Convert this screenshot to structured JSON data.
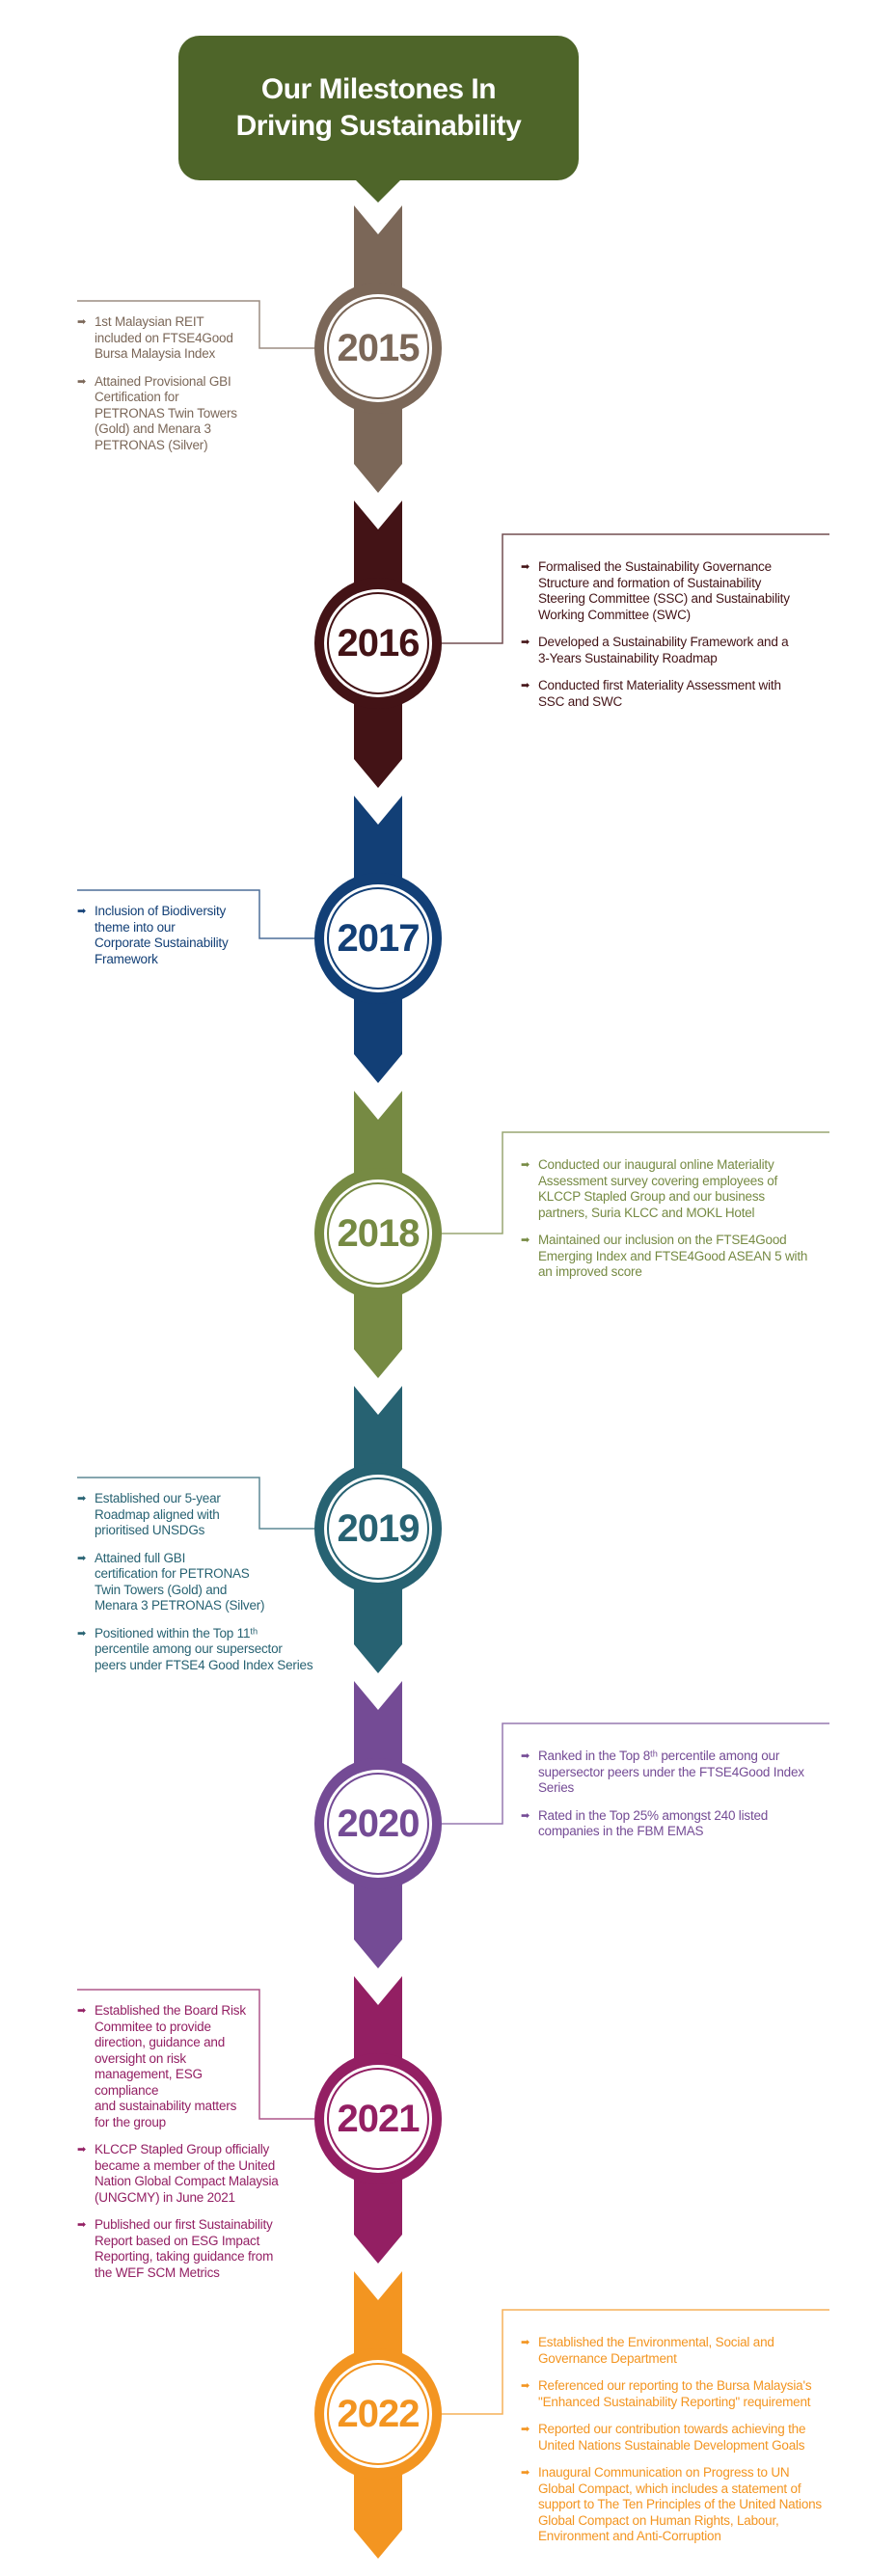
{
  "title": "Our Milestones In\nDriving Sustainability",
  "title_color": "#4e6529",
  "bullet_icon": "arrow-right-icon",
  "milestones": [
    {
      "year": "2015",
      "color": "#7b6758",
      "side": "left",
      "items": [
        "1st Malaysian REIT\nincluded on FTSE4Good\nBursa Malaysia Index",
        "Attained Provisional GBI\nCertification for\nPETRONAS Twin Towers\n(Gold) and Menara 3\nPETRONAS (Silver)"
      ]
    },
    {
      "year": "2016",
      "color": "#431316",
      "side": "right",
      "items": [
        "Formalised the Sustainability Governance\nStructure and formation of Sustainability\nSteering Committee (SSC) and Sustainability\nWorking Committee (SWC)",
        "Developed a Sustainability Framework and a\n3-Years Sustainability Roadmap",
        "Conducted first Materiality Assessment with\nSSC and SWC"
      ]
    },
    {
      "year": "2017",
      "color": "#123f76",
      "side": "left",
      "items": [
        "Inclusion of Biodiversity\ntheme into our\nCorporate Sustainability\nFramework"
      ]
    },
    {
      "year": "2018",
      "color": "#768a43",
      "side": "right",
      "items": [
        "Conducted our inaugural online Materiality\nAssessment survey covering employees of\nKLCCP Stapled Group and our business\npartners, Suria KLCC and MOKL Hotel",
        "Maintained our inclusion on the FTSE4Good\nEmerging Index and FTSE4Good ASEAN 5 with\nan improved score"
      ]
    },
    {
      "year": "2019",
      "color": "#276272",
      "side": "left",
      "items": [
        "Established our 5-year\nRoadmap aligned with\nprioritised UNSDGs",
        "Attained full GBI\ncertification for PETRONAS\nTwin Towers (Gold) and\nMenara 3 PETRONAS (Silver)",
        "Positioned within the Top 11ᵗʰ\npercentile among our supersector\npeers under FTSE4 Good Index Series"
      ]
    },
    {
      "year": "2020",
      "color": "#744b95",
      "side": "right",
      "items": [
        "Ranked in the Top 8ᵗʰ percentile among our\nsupersector peers under the FTSE4Good Index\nSeries",
        "Rated in the Top 25% amongst 240 listed\ncompanies in the FBM EMAS"
      ]
    },
    {
      "year": "2021",
      "color": "#931f63",
      "side": "left",
      "items": [
        "Established the Board Risk\nCommitee to provide\ndirection, guidance and\noversight on risk\nmanagement, ESG\ncompliance\nand sustainability matters\nfor the group",
        "KLCCP Stapled Group officially\nbecame a member of the United\nNation Global Compact Malaysia\n(UNGCMY) in June 2021",
        "Published our first Sustainability\nReport based on ESG Impact\nReporting, taking guidance from\nthe WEF SCM Metrics"
      ]
    },
    {
      "year": "2022",
      "color": "#f39521",
      "side": "right",
      "items": [
        "Established the Environmental, Social and\nGovernance Department",
        "Referenced our reporting to the Bursa Malaysia's\n\"Enhanced Sustainability Reporting\" requirement",
        "Reported our contribution towards achieving the\nUnited Nations Sustainable Development Goals",
        "Inaugural Communication on Progress to UN\nGlobal Compact, which includes a statement of\nsupport to The Ten Principles of the United Nations\nGlobal Compact on Human Rights, Labour,\nEnvironment and Anti-Corruption"
      ]
    }
  ]
}
